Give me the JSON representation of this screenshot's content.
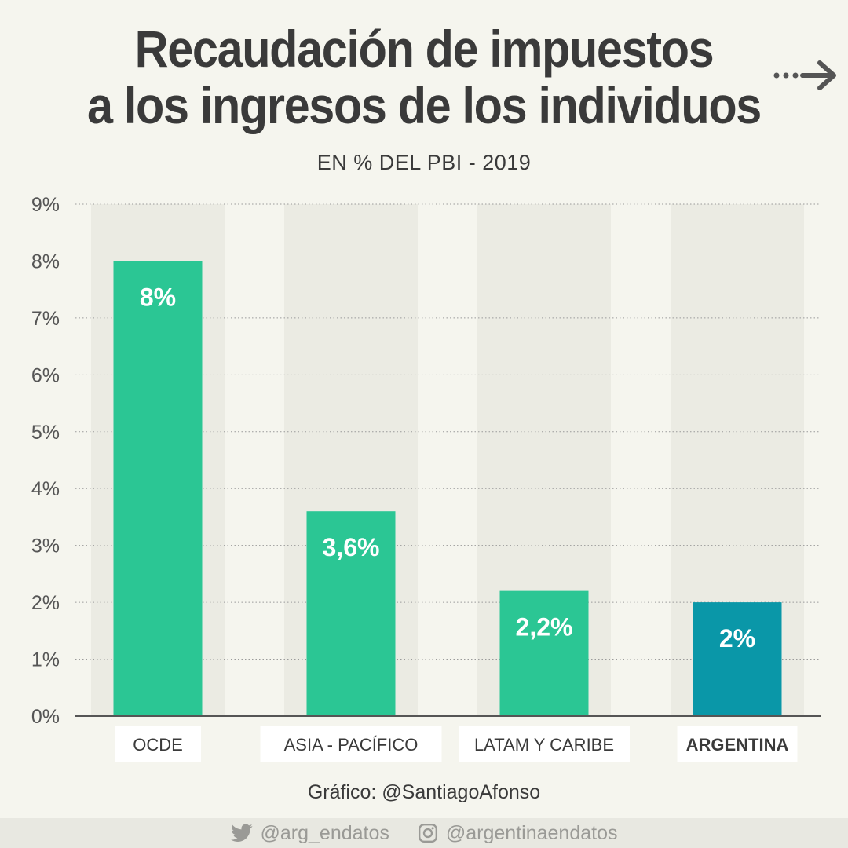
{
  "header": {
    "title_line1": "Recaudación de impuestos",
    "title_line2": "a los ingresos de los individuos",
    "subtitle": "EN % DEL PBI  -  2019",
    "arrow_icon": "dotted-arrow-right-icon"
  },
  "chart_data": {
    "type": "bar",
    "categories": [
      "OCDE",
      "ASIA - PACÍFICO",
      "LATAM Y CARIBE",
      "ARGENTINA"
    ],
    "values": [
      8.0,
      3.6,
      2.2,
      2.0
    ],
    "data_labels": [
      "8%",
      "3,6%",
      "2,2%",
      "2%"
    ],
    "highlight": "ARGENTINA",
    "ylim": [
      0,
      9
    ],
    "yticks": [
      0,
      1,
      2,
      3,
      4,
      5,
      6,
      7,
      8,
      9
    ],
    "ytick_labels": [
      "0%",
      "1%",
      "2%",
      "3%",
      "4%",
      "5%",
      "6%",
      "7%",
      "8%",
      "9%"
    ],
    "grid": true,
    "colors": {
      "bar": "#2bc694",
      "highlight_bar": "#0a97a8",
      "column_background": "#ebebe3",
      "grid": "#9a9a9a",
      "axis": "#555555",
      "text": "#3a3a3a"
    }
  },
  "credit": "Gráfico: @SantiagoAfonso",
  "footer": {
    "twitter_icon": "twitter-icon",
    "twitter": "@arg_endatos",
    "instagram_icon": "instagram-icon",
    "instagram": "@argentinaendatos"
  }
}
